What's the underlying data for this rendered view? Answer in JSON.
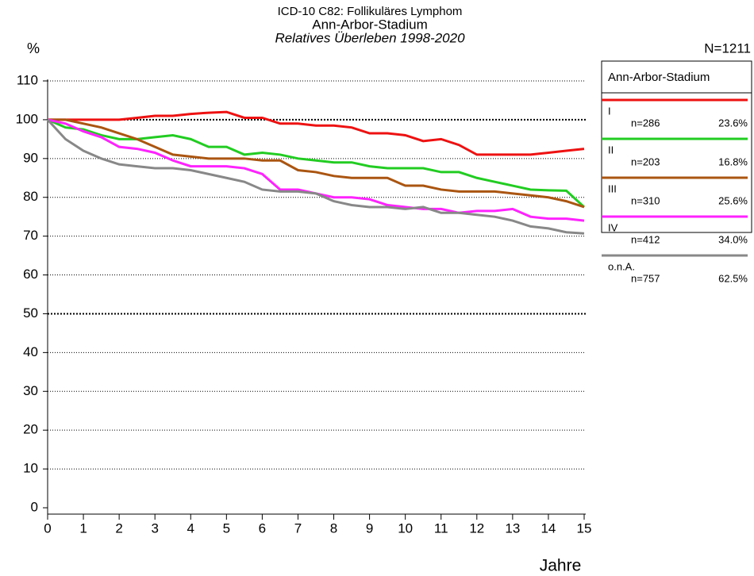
{
  "chart_data": {
    "type": "line",
    "title": "ICD-10 C82: Follikuläres Lymphom",
    "subtitle": "Ann-Arbor-Stadium",
    "subtitle2": "Relatives Überleben 1998-2020",
    "ylabel": "%",
    "xlabel": "Jahre",
    "total": "N=1211",
    "legend_title": "Ann-Arbor-Stadium",
    "legend": "right",
    "grid": true,
    "xlim": [
      0,
      15
    ],
    "xticks": [
      0,
      1,
      2,
      3,
      4,
      5,
      6,
      7,
      8,
      9,
      10,
      11,
      12,
      13,
      14,
      15
    ],
    "ylim": [
      0,
      110
    ],
    "yticks": [
      0,
      10,
      20,
      30,
      40,
      50,
      60,
      70,
      80,
      90,
      100,
      110
    ],
    "x": [
      0,
      0.5,
      1,
      1.5,
      2,
      2.5,
      3,
      3.5,
      4,
      4.5,
      5,
      5.5,
      6,
      6.5,
      7,
      7.5,
      8,
      8.5,
      9,
      9.5,
      10,
      10.5,
      11,
      11.5,
      12,
      12.5,
      13,
      13.5,
      14,
      14.5,
      15
    ],
    "series": [
      {
        "name": "I",
        "n": "n=286",
        "percent": "23.6%",
        "color": "#ee1111",
        "values": [
          100,
          100,
          100,
          100,
          100,
          100.5,
          101,
          101,
          101.5,
          101.8,
          102,
          100.5,
          100.5,
          99,
          99,
          98.5,
          98.5,
          98,
          96.5,
          96.5,
          96,
          94.5,
          95,
          93.5,
          91,
          91,
          91,
          91,
          91.5,
          92,
          92.5
        ]
      },
      {
        "name": "II",
        "n": "n=203",
        "percent": "16.8%",
        "color": "#22cc22",
        "values": [
          100,
          98,
          97.5,
          96,
          95,
          95,
          95.5,
          96,
          95,
          93,
          93,
          91,
          91.5,
          91,
          90,
          89.5,
          89,
          89,
          88,
          87.5,
          87.5,
          87.5,
          86.5,
          86.5,
          85,
          84,
          83,
          82,
          81.8,
          81.7,
          77.5
        ]
      },
      {
        "name": "III",
        "n": "n=310",
        "percent": "25.6%",
        "color": "#aa5511",
        "values": [
          100,
          100,
          99,
          98,
          96.5,
          95,
          93,
          91,
          90.5,
          90,
          90,
          90,
          89.5,
          89.5,
          87,
          86.5,
          85.5,
          85,
          85,
          85,
          83,
          83,
          82,
          81.5,
          81.5,
          81.5,
          81,
          80.5,
          80,
          79,
          77.5
        ]
      },
      {
        "name": "IV",
        "n": "n=412",
        "percent": "34.0%",
        "color": "#ff22ff",
        "values": [
          100,
          99,
          97,
          95.5,
          93,
          92.5,
          91.5,
          89.5,
          88,
          88,
          88,
          87.5,
          86,
          82,
          82,
          81,
          80,
          80,
          79.5,
          78,
          77.5,
          77,
          77,
          76,
          76.5,
          76.5,
          77,
          75,
          74.5,
          74.5,
          74
        ]
      },
      {
        "name": "o.n.A.",
        "n": "n=757",
        "percent": "62.5%",
        "color": "#888888",
        "values": [
          100,
          95,
          92,
          90,
          88.5,
          88,
          87.5,
          87.5,
          87,
          86,
          85,
          84,
          82,
          81.5,
          81.5,
          81,
          79,
          78,
          77.5,
          77.5,
          77,
          77.5,
          76,
          76,
          75.5,
          75,
          74,
          72.5,
          72,
          71,
          70.7
        ]
      }
    ]
  }
}
